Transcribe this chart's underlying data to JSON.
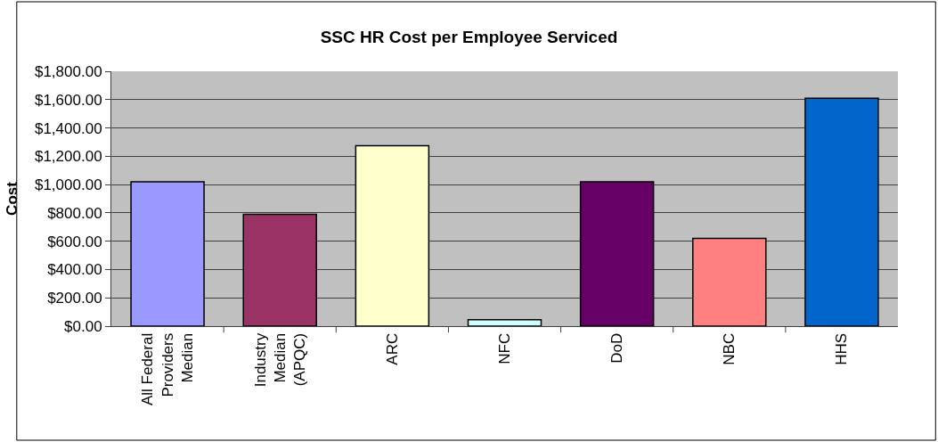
{
  "chart_data": {
    "type": "bar",
    "title": "SSC HR Cost per Employee Serviced",
    "ylabel": "Cost",
    "categories": [
      "All Federal Providers Median",
      "Industry Median (APQC)",
      "ARC",
      "NFC",
      "DoD",
      "NBC",
      "HHS"
    ],
    "values": [
      1020,
      790,
      1275,
      45,
      1020,
      620,
      1610
    ],
    "colors": [
      "#9999ff",
      "#993366",
      "#ffffcc",
      "#ccffff",
      "#660066",
      "#ff8080",
      "#0066cc"
    ],
    "ylim": [
      0,
      1800
    ],
    "yticks": [
      {
        "value": 0,
        "label": "$0.00"
      },
      {
        "value": 200,
        "label": "$200.00"
      },
      {
        "value": 400,
        "label": "$400.00"
      },
      {
        "value": 600,
        "label": "$600.00"
      },
      {
        "value": 800,
        "label": "$800.00"
      },
      {
        "value": 1000,
        "label": "$1,000.00"
      },
      {
        "value": 1200,
        "label": "$1,200.00"
      },
      {
        "value": 1400,
        "label": "$1,400.00"
      },
      {
        "value": 1600,
        "label": "$1,600.00"
      },
      {
        "value": 1800,
        "label": "$1,800.00"
      }
    ],
    "grid": "y"
  }
}
